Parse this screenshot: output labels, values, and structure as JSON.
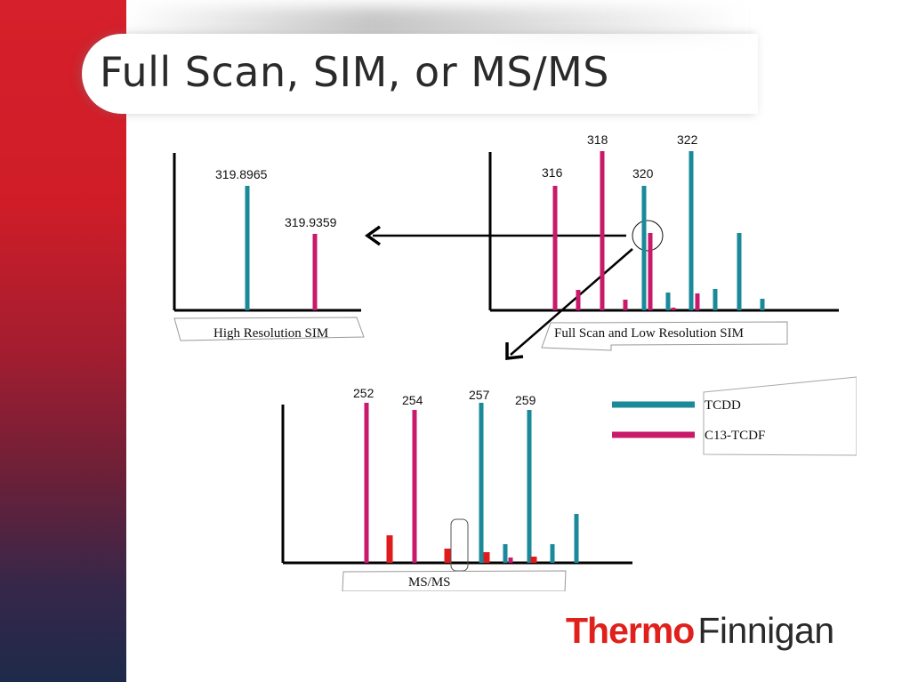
{
  "title": "Full Scan, SIM, or MS/MS",
  "logo": {
    "brand": "Thermo",
    "product": "Finnigan"
  },
  "colors": {
    "tcdd": "#1a8a9a",
    "c13_tcdf": "#c8196a",
    "fragment": "#e01b1b"
  },
  "panels": {
    "high_res": {
      "label": "High Resolution SIM",
      "peaks": [
        {
          "label": "319.8965",
          "series": "TCDD"
        },
        {
          "label": "319.9359",
          "series": "C13-TCDF"
        }
      ]
    },
    "full_scan": {
      "label": "Full Scan and Low Resolution SIM",
      "peak_labels": [
        "316",
        "318",
        "320",
        "322"
      ]
    },
    "msms": {
      "label": "MS/MS",
      "peak_labels": [
        "252",
        "254",
        "257",
        "259"
      ]
    }
  },
  "legend": {
    "items": [
      {
        "name": "TCDD",
        "color": "#1a8a9a"
      },
      {
        "name": "C13-TCDF",
        "color": "#c8196a"
      }
    ]
  }
}
